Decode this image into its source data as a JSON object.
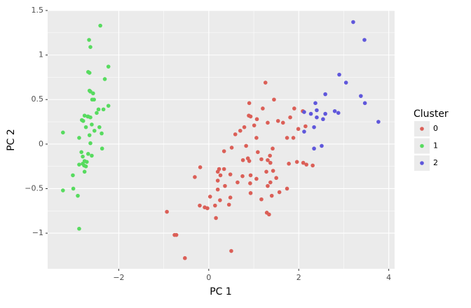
{
  "chart_data": {
    "type": "scatter",
    "x_label": "PC 1",
    "y_label": "PC 2",
    "legend_title": "Cluster",
    "legend_position": "right",
    "grid": true,
    "xlim": [
      -3.58,
      4.13
    ],
    "ylim": [
      -1.4,
      1.5
    ],
    "xticks": [
      {
        "value": -2,
        "label": "−2"
      },
      0,
      2,
      4
    ],
    "yticks": [
      {
        "value": -1,
        "label": "−1"
      },
      {
        "value": -0.5,
        "label": "−0.5"
      },
      0,
      0.5,
      1,
      1.5
    ],
    "series": [
      {
        "name": "0",
        "color": "#db5f57",
        "x": [
          1.26,
          0.9,
          1.45,
          1.2,
          1.9,
          2.09,
          1.81,
          0.89,
          0.93,
          1.07,
          1.31,
          1.54,
          1.65,
          0.79,
          1.01,
          0.7,
          2.15,
          1.99,
          1.06,
          1.74,
          1.88,
          0.59,
          0.83,
          0.51,
          1.42,
          0.34,
          1.09,
          1.36,
          0.87,
          1.17,
          1.31,
          0.76,
          0.9,
          1.37,
          1.78,
          1.96,
          2.1,
          2.17,
          2.31,
          -0.19,
          0.23,
          0.34,
          0.2,
          1.28,
          1.43,
          0.48,
          0.26,
          -0.31,
          0.75,
          0.93,
          1.06,
          1.5,
          0.2,
          1.37,
          0.64,
          0.92,
          0.36,
          0.2,
          1.31,
          1.57,
          1.74,
          0.93,
          0.03,
          0.48,
          1.4,
          1.17,
          0.25,
          -0.2,
          -0.09,
          -0.03,
          0.14,
          0.45,
          1.29,
          1.34,
          0.16,
          -0.93,
          -0.76,
          -0.72,
          0.5,
          -0.53
        ],
        "values": [
          0.69,
          0.46,
          0.5,
          0.4,
          0.4,
          0.37,
          0.3,
          0.32,
          0.31,
          0.28,
          0.24,
          0.26,
          0.24,
          0.19,
          0.21,
          0.15,
          0.2,
          0.17,
          0.07,
          0.07,
          0.07,
          0.11,
          -0.02,
          -0.04,
          -0.05,
          -0.08,
          -0.09,
          -0.13,
          -0.16,
          -0.17,
          -0.18,
          -0.18,
          -0.19,
          -0.21,
          -0.22,
          -0.2,
          -0.21,
          -0.23,
          -0.24,
          -0.26,
          -0.28,
          -0.28,
          -0.31,
          -0.31,
          -0.3,
          -0.34,
          -0.35,
          -0.37,
          -0.36,
          -0.35,
          -0.39,
          -0.38,
          -0.41,
          -0.43,
          -0.43,
          -0.44,
          -0.47,
          -0.51,
          -0.47,
          -0.54,
          -0.5,
          -0.55,
          -0.59,
          -0.6,
          -0.58,
          -0.62,
          -0.63,
          -0.69,
          -0.71,
          -0.72,
          -0.69,
          -0.68,
          -0.77,
          -0.79,
          -0.83,
          -0.76,
          -1.02,
          -1.02,
          -1.2,
          -1.28
        ]
      },
      {
        "name": "1",
        "color": "#57db5f",
        "x": [
          -2.41,
          -2.66,
          -2.63,
          -2.23,
          -2.68,
          -2.65,
          -2.31,
          -2.65,
          -2.57,
          -2.63,
          -2.55,
          -2.59,
          -2.23,
          -2.34,
          -2.45,
          -2.76,
          -2.68,
          -2.69,
          -2.49,
          -2.63,
          -2.82,
          -2.79,
          -2.6,
          -2.43,
          -2.73,
          -2.54,
          -2.38,
          -2.65,
          -3.24,
          -2.88,
          -2.63,
          -2.37,
          -2.83,
          -2.68,
          -2.6,
          -2.8,
          -2.76,
          -2.71,
          -2.8,
          -2.88,
          -2.77,
          -2.73,
          -3.02,
          -2.76,
          -3.24,
          -3.01,
          -2.91,
          -2.88
        ],
        "values": [
          1.33,
          1.17,
          1.09,
          0.87,
          0.81,
          0.8,
          0.73,
          0.6,
          0.57,
          0.59,
          0.5,
          0.5,
          0.43,
          0.39,
          0.39,
          0.32,
          0.31,
          0.31,
          0.35,
          0.3,
          0.27,
          0.26,
          0.22,
          0.19,
          0.19,
          0.15,
          0.12,
          0.1,
          0.13,
          0.07,
          0.01,
          -0.05,
          -0.09,
          -0.11,
          -0.13,
          -0.14,
          -0.19,
          -0.2,
          -0.22,
          -0.23,
          -0.24,
          -0.25,
          -0.35,
          -0.31,
          -0.52,
          -0.5,
          -0.58,
          -0.95
        ]
      },
      {
        "name": "2",
        "color": "#5f57db",
        "x": [
          3.21,
          3.46,
          2.9,
          3.05,
          2.59,
          3.38,
          3.47,
          2.37,
          2.12,
          2.4,
          2.8,
          2.88,
          2.59,
          2.27,
          2.4,
          2.54,
          3.77,
          2.34,
          2.12,
          2.34,
          2.51
        ],
        "values": [
          1.37,
          1.17,
          0.78,
          0.69,
          0.56,
          0.54,
          0.46,
          0.46,
          0.36,
          0.38,
          0.37,
          0.35,
          0.34,
          0.34,
          0.3,
          0.28,
          0.25,
          0.19,
          0.14,
          -0.05,
          -0.02
        ]
      }
    ]
  }
}
